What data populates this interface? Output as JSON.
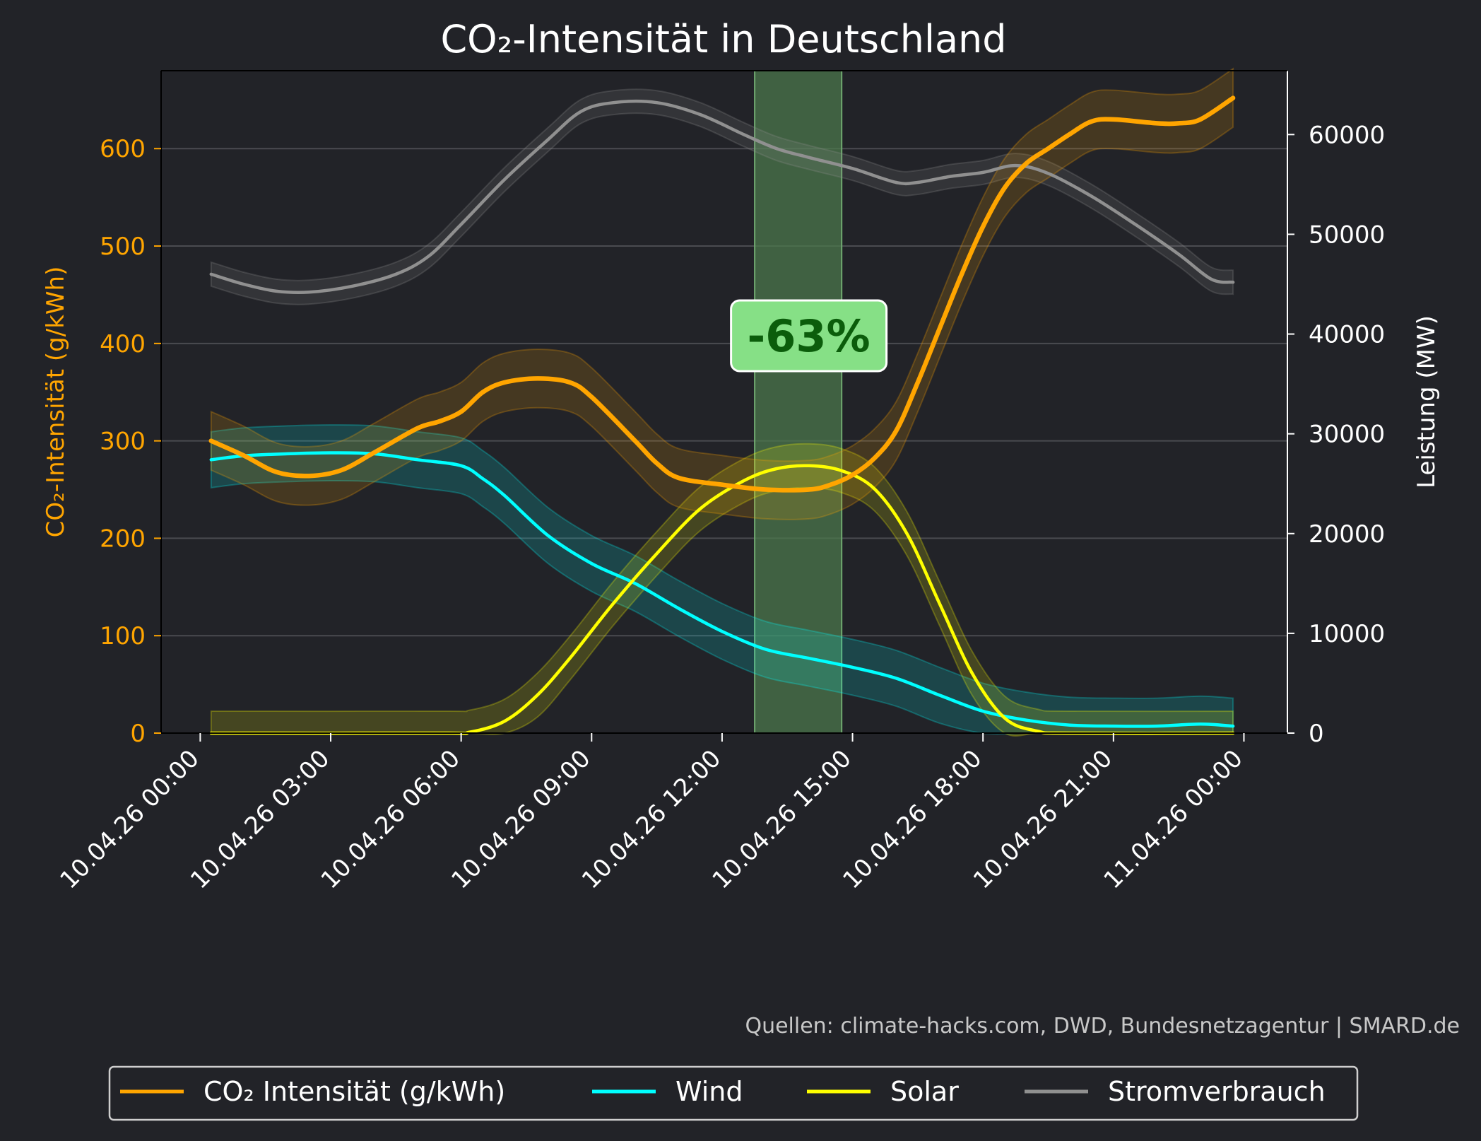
{
  "chart_data": {
    "type": "line",
    "title": "CO₂-Intensität in Deutschland",
    "ylabel_left": "CO₂-Intensität (g/kWh)",
    "ylabel_right": "Leistung (MW)",
    "ylim_left": [
      0,
      680
    ],
    "ylim_right": [
      0,
      66400
    ],
    "yticks_left": [
      "0",
      "100",
      "200",
      "300",
      "400",
      "500",
      "600"
    ],
    "yticks_left_values": [
      0,
      100,
      200,
      300,
      400,
      500,
      600
    ],
    "yticks_right": [
      "0",
      "10000",
      "20000",
      "30000",
      "40000",
      "50000",
      "60000"
    ],
    "yticks_right_values": [
      0,
      10000,
      20000,
      30000,
      40000,
      50000,
      60000
    ],
    "xlim_hours": [
      -0.9,
      25.0
    ],
    "xticks": [
      "10.04.26 00:00",
      "10.04.26 03:00",
      "10.04.26 06:00",
      "10.04.26 09:00",
      "10.04.26 12:00",
      "10.04.26 15:00",
      "10.04.26 18:00",
      "10.04.26 21:00",
      "11.04.26 00:00"
    ],
    "xticks_hours": [
      0,
      3,
      6,
      9,
      12,
      15,
      18,
      21,
      24
    ],
    "grid": "horizontal",
    "highlight": {
      "from_hour": 12.75,
      "to_hour": 14.75,
      "color": "#4c7a4c",
      "label": "-63%"
    },
    "source": "Quellen: climate-hacks.com, DWD, Bundesnetzagentur | SMARD.de",
    "legend_position": "bottom-center",
    "series": [
      {
        "name": "CO₂ Intensität (g/kWh)",
        "axis": "left",
        "color": "#ffa500",
        "band": 30,
        "points": [
          [
            0.25,
            300
          ],
          [
            1.0,
            285
          ],
          [
            1.75,
            268
          ],
          [
            2.5,
            264
          ],
          [
            3.25,
            270
          ],
          [
            4.0,
            288
          ],
          [
            5.0,
            313
          ],
          [
            5.5,
            320
          ],
          [
            6.0,
            330
          ],
          [
            6.5,
            350
          ],
          [
            7.0,
            360
          ],
          [
            7.75,
            364
          ],
          [
            8.5,
            360
          ],
          [
            9.0,
            345
          ],
          [
            10.0,
            300
          ],
          [
            10.5,
            277
          ],
          [
            11.0,
            262
          ],
          [
            12.0,
            255
          ],
          [
            13.0,
            250
          ],
          [
            14.0,
            250
          ],
          [
            14.5,
            255
          ],
          [
            15.0,
            265
          ],
          [
            15.5,
            282
          ],
          [
            16.0,
            310
          ],
          [
            16.5,
            360
          ],
          [
            17.0,
            415
          ],
          [
            17.5,
            470
          ],
          [
            18.0,
            520
          ],
          [
            18.5,
            560
          ],
          [
            19.0,
            585
          ],
          [
            19.5,
            600
          ],
          [
            20.0,
            615
          ],
          [
            20.5,
            628
          ],
          [
            21.0,
            630
          ],
          [
            22.0,
            626
          ],
          [
            22.5,
            626
          ],
          [
            23.0,
            630
          ],
          [
            23.75,
            652
          ]
        ]
      },
      {
        "name": "Wind",
        "axis": "right",
        "color": "#00ffff",
        "band": 2800,
        "points": [
          [
            0.25,
            27400
          ],
          [
            1.0,
            27800
          ],
          [
            2.0,
            28000
          ],
          [
            3.0,
            28100
          ],
          [
            4.0,
            28000
          ],
          [
            5.0,
            27400
          ],
          [
            6.0,
            26800
          ],
          [
            6.5,
            25500
          ],
          [
            7.0,
            23800
          ],
          [
            8.0,
            19800
          ],
          [
            9.0,
            17000
          ],
          [
            10.0,
            15000
          ],
          [
            11.0,
            12500
          ],
          [
            12.0,
            10200
          ],
          [
            13.0,
            8400
          ],
          [
            14.0,
            7500
          ],
          [
            15.0,
            6600
          ],
          [
            16.0,
            5500
          ],
          [
            17.0,
            3800
          ],
          [
            18.0,
            2200
          ],
          [
            19.0,
            1300
          ],
          [
            20.0,
            800
          ],
          [
            21.0,
            700
          ],
          [
            22.0,
            700
          ],
          [
            23.0,
            900
          ],
          [
            23.75,
            700
          ]
        ]
      },
      {
        "name": "Solar",
        "axis": "right",
        "color": "#ffff00",
        "band": 2200,
        "points": [
          [
            0.25,
            0
          ],
          [
            5.5,
            0
          ],
          [
            6.2,
            100
          ],
          [
            7.0,
            1200
          ],
          [
            7.75,
            3800
          ],
          [
            8.5,
            7500
          ],
          [
            9.5,
            13000
          ],
          [
            10.5,
            18000
          ],
          [
            11.5,
            22500
          ],
          [
            12.5,
            25300
          ],
          [
            13.25,
            26500
          ],
          [
            14.0,
            26800
          ],
          [
            14.75,
            26300
          ],
          [
            15.5,
            24500
          ],
          [
            16.25,
            20000
          ],
          [
            17.0,
            13000
          ],
          [
            17.75,
            6000
          ],
          [
            18.5,
            1500
          ],
          [
            19.25,
            200
          ],
          [
            20.0,
            0
          ],
          [
            23.75,
            0
          ]
        ]
      },
      {
        "name": "Stromverbrauch",
        "axis": "right",
        "color": "#909090",
        "band": 1200,
        "points": [
          [
            0.25,
            46000
          ],
          [
            1.0,
            45000
          ],
          [
            1.75,
            44300
          ],
          [
            2.5,
            44200
          ],
          [
            3.5,
            44800
          ],
          [
            4.5,
            46000
          ],
          [
            5.25,
            47800
          ],
          [
            6.0,
            51000
          ],
          [
            7.0,
            55500
          ],
          [
            8.0,
            59500
          ],
          [
            8.75,
            62300
          ],
          [
            9.5,
            63200
          ],
          [
            10.5,
            63200
          ],
          [
            11.5,
            62000
          ],
          [
            12.5,
            60000
          ],
          [
            13.25,
            58600
          ],
          [
            14.0,
            57700
          ],
          [
            15.0,
            56600
          ],
          [
            16.0,
            55200
          ],
          [
            16.5,
            55200
          ],
          [
            17.25,
            55800
          ],
          [
            18.0,
            56200
          ],
          [
            18.75,
            56900
          ],
          [
            19.5,
            56100
          ],
          [
            20.5,
            53800
          ],
          [
            21.5,
            51000
          ],
          [
            22.5,
            48000
          ],
          [
            23.25,
            45500
          ],
          [
            23.75,
            45200
          ]
        ]
      }
    ]
  }
}
